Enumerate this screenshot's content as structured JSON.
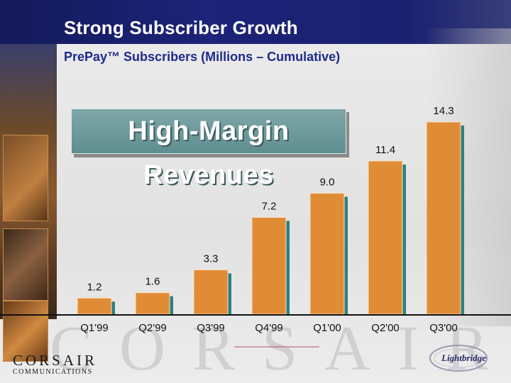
{
  "header": {
    "title": "Strong Subscriber Growth",
    "subtitle": "PrePay™ Subscribers (Millions – Cumulative)"
  },
  "callout": {
    "text": "High-Margin Revenues"
  },
  "logos": {
    "corsair_main": "CORSAIR",
    "corsair_sub": "COMMUNICATIONS",
    "lightbridge": "Lightbridge",
    "watermark": "CORSAIR"
  },
  "colors": {
    "bar": "#e08c36",
    "bar_shadow": "#2f7f80",
    "title_bar": "#1a2170",
    "subtitle": "#1d2b8c"
  },
  "chart_data": {
    "type": "bar",
    "title": "PrePay™ Subscribers (Millions – Cumulative)",
    "categories": [
      "Q1'99",
      "Q2'99",
      "Q3'99",
      "Q4'99",
      "Q1'00",
      "Q2'00",
      "Q3'00"
    ],
    "values": [
      1.2,
      1.6,
      3.3,
      7.2,
      9.0,
      11.4,
      14.3
    ],
    "value_labels": [
      "1.2",
      "1.6",
      "3.3",
      "7.2",
      "9.0",
      "11.4",
      "14.3"
    ],
    "xlabel": "",
    "ylabel": "",
    "ylim": [
      0,
      14.3
    ],
    "grid": false,
    "legend": "none"
  }
}
